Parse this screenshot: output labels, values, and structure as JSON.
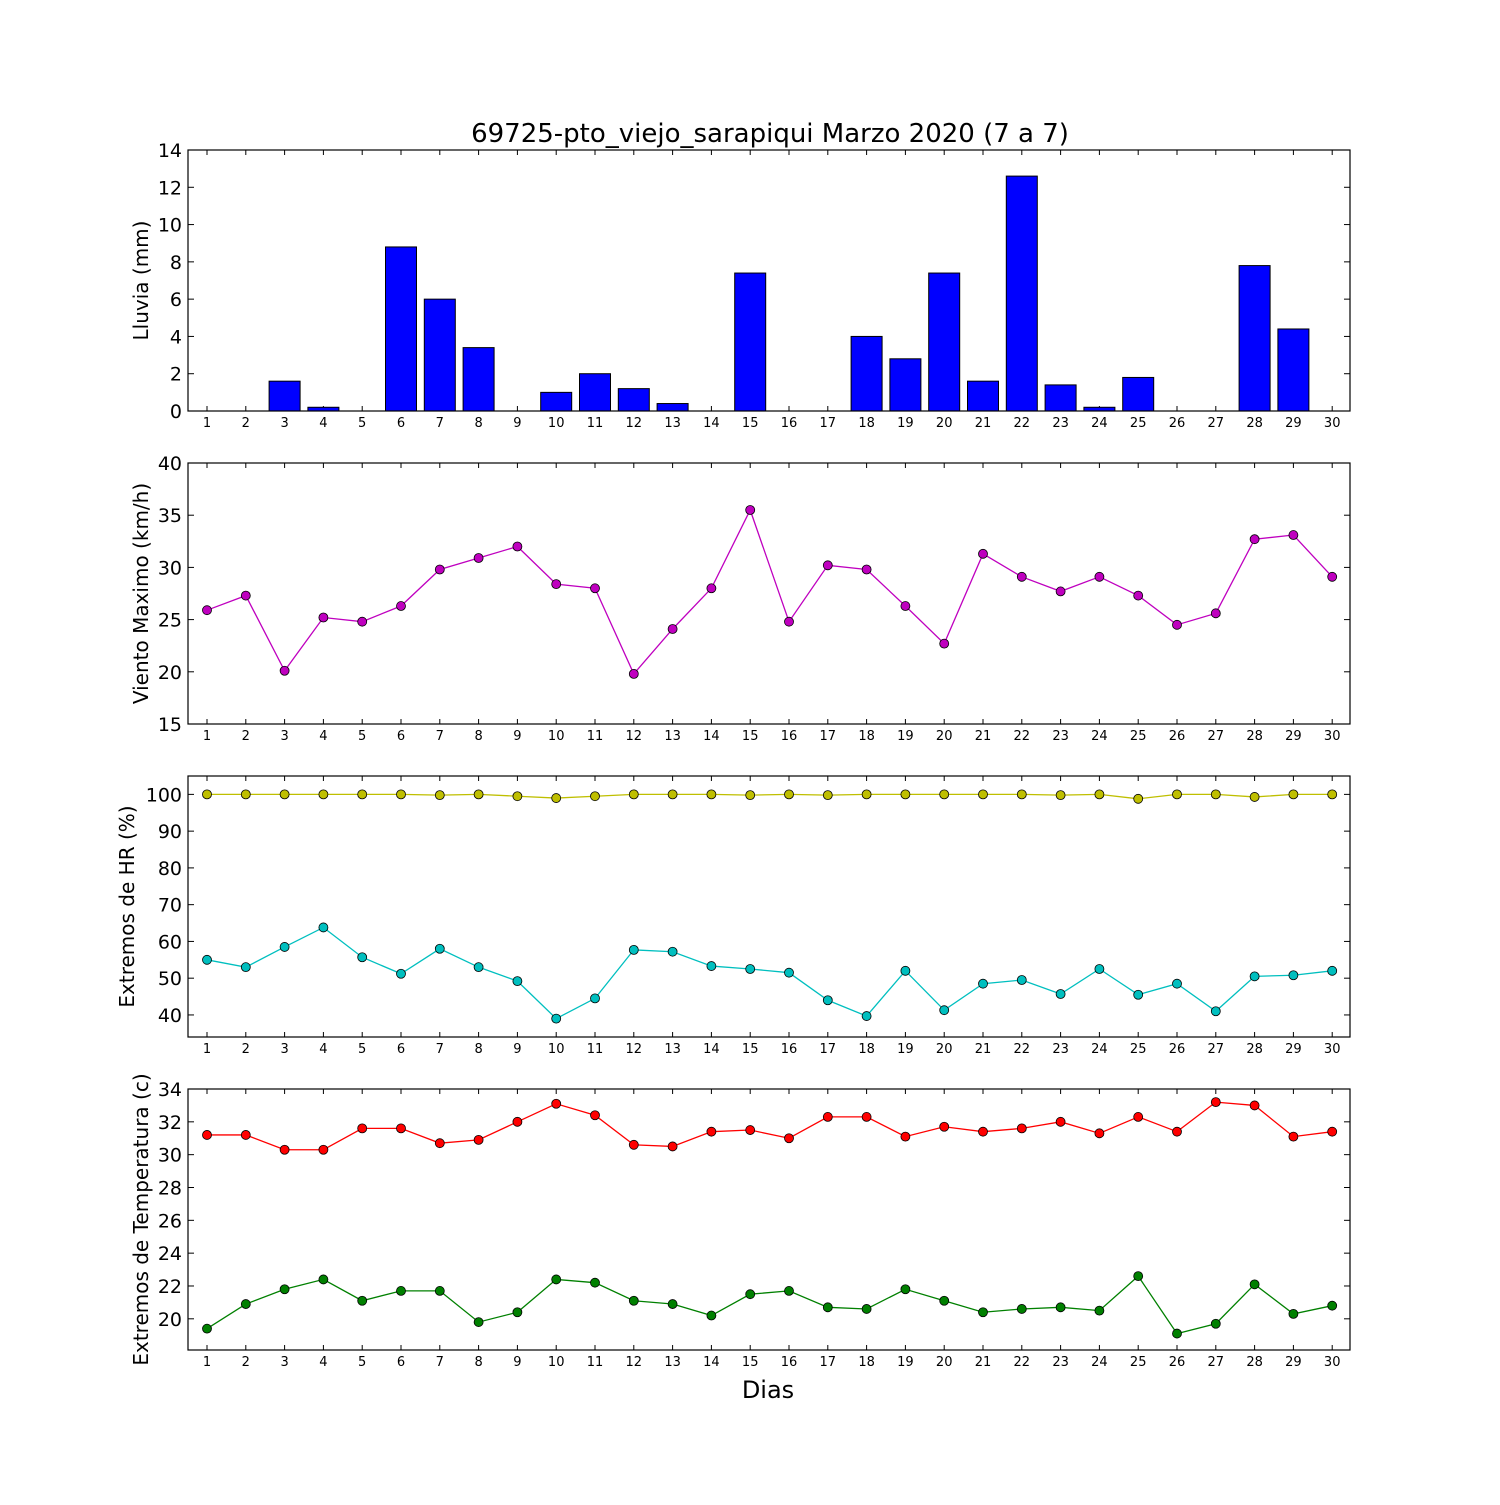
{
  "title": "69725-pto_viejo_sarapiqui Marzo 2020  (7 a 7)",
  "xlabel": "Dias",
  "chart_data": [
    {
      "type": "bar",
      "ylabel": "Lluvia (mm)",
      "ylim": [
        0,
        14
      ],
      "yticks": [
        0,
        2,
        4,
        6,
        8,
        10,
        12,
        14
      ],
      "categories": [
        1,
        2,
        3,
        4,
        5,
        6,
        7,
        8,
        9,
        10,
        11,
        12,
        13,
        14,
        15,
        16,
        17,
        18,
        19,
        20,
        21,
        22,
        23,
        24,
        25,
        26,
        27,
        28,
        29,
        30
      ],
      "series": [
        {
          "color": "#0000ff",
          "values": [
            0,
            0,
            1.6,
            0.2,
            0,
            8.8,
            6.0,
            3.4,
            0,
            1.0,
            2.0,
            1.2,
            0.4,
            0,
            7.4,
            0,
            0,
            4.0,
            2.8,
            7.4,
            1.6,
            12.6,
            1.4,
            0.2,
            1.8,
            0,
            0,
            7.8,
            4.4,
            0
          ]
        }
      ]
    },
    {
      "type": "line",
      "ylabel": "Viento Maximo (km/h)",
      "ylim": [
        15,
        40
      ],
      "yticks": [
        15,
        20,
        25,
        30,
        35,
        40
      ],
      "categories": [
        1,
        2,
        3,
        4,
        5,
        6,
        7,
        8,
        9,
        10,
        11,
        12,
        13,
        14,
        15,
        16,
        17,
        18,
        19,
        20,
        21,
        22,
        23,
        24,
        25,
        26,
        27,
        28,
        29,
        30
      ],
      "series": [
        {
          "color": "#bf00bf",
          "values": [
            25.9,
            27.3,
            20.1,
            25.2,
            24.8,
            26.3,
            29.8,
            30.9,
            32.0,
            28.4,
            28.0,
            19.8,
            24.1,
            28.0,
            35.5,
            24.8,
            30.2,
            29.8,
            26.3,
            22.7,
            31.3,
            29.1,
            27.7,
            29.1,
            27.3,
            24.5,
            25.6,
            32.7,
            33.1,
            29.1
          ]
        }
      ]
    },
    {
      "type": "line",
      "ylabel": "Extremos de HR (%)",
      "ylim": [
        34,
        105
      ],
      "yticks": [
        40,
        50,
        60,
        70,
        80,
        90,
        100
      ],
      "categories": [
        1,
        2,
        3,
        4,
        5,
        6,
        7,
        8,
        9,
        10,
        11,
        12,
        13,
        14,
        15,
        16,
        17,
        18,
        19,
        20,
        21,
        22,
        23,
        24,
        25,
        26,
        27,
        28,
        29,
        30
      ],
      "series": [
        {
          "color": "#bfbf00",
          "values": [
            100,
            100,
            100,
            100,
            100,
            100,
            99.8,
            100,
            99.5,
            99.0,
            99.5,
            100,
            100,
            100,
            99.8,
            100,
            99.8,
            100,
            100,
            100,
            100,
            100,
            99.8,
            100,
            98.8,
            100,
            100,
            99.3,
            100,
            100
          ]
        },
        {
          "color": "#00bfbf",
          "values": [
            55.0,
            53.0,
            58.5,
            63.8,
            55.7,
            51.2,
            58.0,
            53.0,
            49.2,
            39.0,
            44.5,
            57.7,
            57.2,
            53.3,
            52.5,
            51.5,
            44.0,
            39.7,
            52.0,
            41.3,
            48.5,
            49.5,
            45.7,
            52.5,
            45.5,
            48.5,
            41.0,
            50.5,
            50.8,
            52.0
          ]
        }
      ]
    },
    {
      "type": "line",
      "ylabel": "Extremos de Temperatura (c)",
      "ylim": [
        18.1,
        34
      ],
      "yticks": [
        20,
        22,
        24,
        26,
        28,
        30,
        32,
        34
      ],
      "categories": [
        1,
        2,
        3,
        4,
        5,
        6,
        7,
        8,
        9,
        10,
        11,
        12,
        13,
        14,
        15,
        16,
        17,
        18,
        19,
        20,
        21,
        22,
        23,
        24,
        25,
        26,
        27,
        28,
        29,
        30
      ],
      "series": [
        {
          "color": "#ff0000",
          "values": [
            31.2,
            31.2,
            30.3,
            30.3,
            31.6,
            31.6,
            30.7,
            30.9,
            32.0,
            33.1,
            32.4,
            30.6,
            30.5,
            31.4,
            31.5,
            31.0,
            32.3,
            32.3,
            31.1,
            31.7,
            31.4,
            31.6,
            32.0,
            31.3,
            32.3,
            31.4,
            33.2,
            33.0,
            31.1,
            31.4
          ]
        },
        {
          "color": "#008000",
          "values": [
            19.4,
            20.9,
            21.8,
            22.4,
            21.1,
            21.7,
            21.7,
            19.8,
            20.4,
            22.4,
            22.2,
            21.1,
            20.9,
            20.2,
            21.5,
            21.7,
            20.7,
            20.6,
            21.8,
            21.1,
            20.4,
            20.6,
            20.7,
            20.5,
            22.6,
            19.1,
            19.7,
            22.1,
            20.3,
            20.8
          ]
        }
      ]
    }
  ]
}
